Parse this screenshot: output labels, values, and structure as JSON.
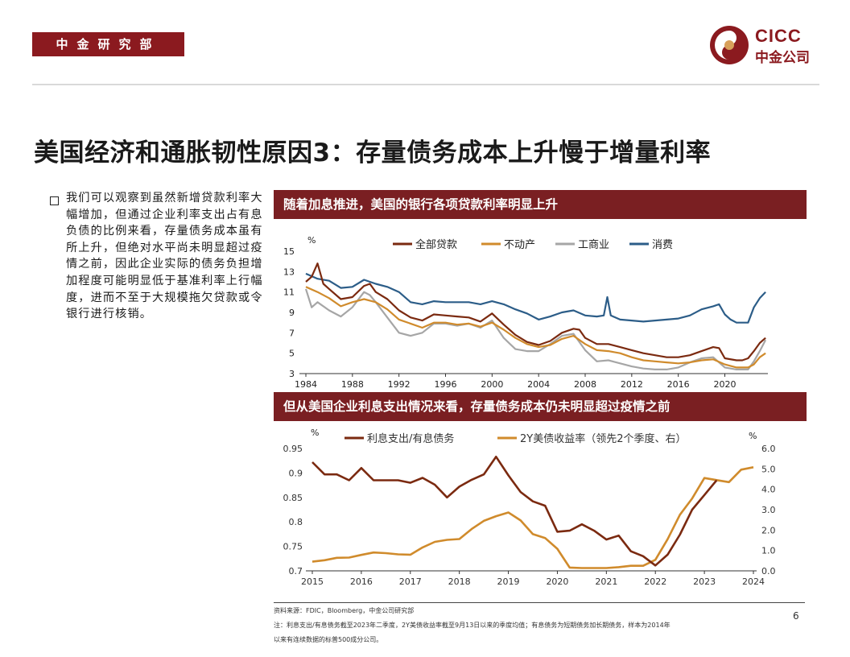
{
  "header": {
    "department": "中金研究部",
    "logo_en": "CICC",
    "logo_cn": "中金公司"
  },
  "title": "美国经济和通胀韧性原因3：存量债务成本上升慢于增量利率",
  "body_text": "我们可以观察到虽然新增贷款利率大幅增加，但通过企业利率支出占有息负债的比例来看，存量债务成本虽有所上升，但绝对水平尚未明显超过疫情之前，因此企业实际的债务负担增加程度可能明显低于基准利率上行幅度，进而不至于大规模拖欠贷款或令银行进行核销。",
  "banner1": "随着加息推进，美国的银行各项贷款利率明显上升",
  "banner2": "但从美国企业利息支出情况来看，存量债务成本仍未明显超过疫情之前",
  "footer": {
    "source": "资料来源：FDIC，Bloomberg，中金公司研究部",
    "note1": "注：利息支出/有息债务截至2023年二季度，2Y美债收益率截至9月13日以来的季度均值；有息债务为短期债务加长期债务，样本为2014年",
    "note2": "以来有连续数据的标普500成分公司。",
    "page": "6"
  },
  "colors": {
    "brand": "#8b1a1f",
    "banner": "#7a1f22",
    "series_all": "#7b2a10",
    "series_realestate": "#d08b2c",
    "series_ci": "#a6a6a6",
    "series_consumer": "#2c5d88"
  },
  "chart_data": [
    {
      "type": "line",
      "yunit": "%",
      "ylim": [
        3,
        15
      ],
      "yticks": [
        3,
        5,
        7,
        9,
        11,
        13,
        15
      ],
      "xlim": [
        1984,
        2023.7
      ],
      "xticks": [
        1984,
        1988,
        1992,
        1996,
        2000,
        2004,
        2008,
        2012,
        2016,
        2020
      ],
      "legend_position": "top",
      "series": [
        {
          "name": "全部贷款",
          "color": "#7b2a10",
          "x": [
            1984,
            1984.5,
            1985,
            1985.5,
            1986,
            1987,
            1988,
            1989,
            1989.5,
            1990,
            1991,
            1992,
            1993,
            1994,
            1995,
            1996,
            1997,
            1998,
            1999,
            2000,
            2001,
            2002,
            2003,
            2004,
            2005,
            2006,
            2007,
            2007.5,
            2008,
            2009,
            2010,
            2011,
            2012,
            2013,
            2014,
            2015,
            2016,
            2017,
            2018,
            2019,
            2019.5,
            2020,
            2021,
            2021.5,
            2022,
            2022.5,
            2023,
            2023.5
          ],
          "y": [
            12.0,
            12.5,
            13.8,
            11.8,
            11.3,
            10.3,
            10.5,
            11.6,
            11.8,
            11.0,
            10.3,
            9.2,
            8.5,
            8.2,
            8.8,
            8.7,
            8.6,
            8.5,
            8.1,
            8.9,
            7.8,
            6.8,
            6.1,
            5.8,
            6.2,
            7.0,
            7.4,
            7.3,
            6.5,
            5.9,
            5.9,
            5.6,
            5.3,
            5.0,
            4.8,
            4.6,
            4.6,
            4.8,
            5.2,
            5.6,
            5.5,
            4.5,
            4.3,
            4.3,
            4.5,
            5.2,
            6.0,
            6.5
          ]
        },
        {
          "name": "不动产",
          "color": "#d08b2c",
          "x": [
            1984,
            1985,
            1986,
            1987,
            1988,
            1989,
            1990,
            1991,
            1992,
            1993,
            1994,
            1995,
            1996,
            1997,
            1998,
            1999,
            2000,
            2001,
            2002,
            2003,
            2004,
            2005,
            2006,
            2007,
            2008,
            2009,
            2010,
            2011,
            2012,
            2013,
            2014,
            2015,
            2016,
            2017,
            2018,
            2019,
            2020,
            2021,
            2022,
            2022.5,
            2023,
            2023.5
          ],
          "y": [
            11.5,
            11.0,
            10.4,
            9.6,
            10.0,
            10.3,
            10.0,
            9.3,
            8.3,
            7.9,
            7.5,
            8.0,
            8.0,
            7.8,
            7.9,
            7.6,
            8.0,
            7.3,
            6.5,
            5.9,
            5.6,
            5.8,
            6.4,
            6.7,
            5.9,
            5.3,
            5.2,
            5.0,
            4.6,
            4.3,
            4.2,
            4.1,
            4.0,
            4.1,
            4.3,
            4.4,
            3.9,
            3.6,
            3.6,
            3.9,
            4.6,
            5.0
          ]
        },
        {
          "name": "工商业",
          "color": "#a6a6a6",
          "x": [
            1984,
            1984.5,
            1985,
            1986,
            1987,
            1988,
            1989,
            1989.5,
            1990,
            1991,
            1992,
            1993,
            1994,
            1995,
            1996,
            1997,
            1998,
            1999,
            2000,
            2001,
            2002,
            2003,
            2004,
            2005,
            2006,
            2007,
            2008,
            2009,
            2010,
            2011,
            2012,
            2013,
            2014,
            2015,
            2016,
            2017,
            2018,
            2019,
            2020,
            2021,
            2022,
            2022.5,
            2023,
            2023.5
          ],
          "y": [
            11.3,
            9.5,
            10.0,
            9.2,
            8.6,
            9.5,
            11.0,
            10.7,
            10.0,
            8.5,
            7.0,
            6.7,
            7.0,
            7.9,
            7.9,
            7.7,
            7.9,
            7.5,
            8.2,
            6.5,
            5.4,
            5.2,
            5.2,
            5.9,
            6.7,
            6.9,
            5.3,
            4.2,
            4.3,
            4.0,
            3.7,
            3.5,
            3.4,
            3.4,
            3.6,
            4.1,
            4.5,
            4.6,
            3.6,
            3.4,
            3.4,
            4.2,
            5.2,
            6.3
          ]
        },
        {
          "name": "消费",
          "color": "#2c5d88",
          "x": [
            1984,
            1985,
            1986,
            1987,
            1988,
            1989,
            1990,
            1991,
            1992,
            1993,
            1994,
            1995,
            1996,
            1997,
            1998,
            1999,
            2000,
            2001,
            2002,
            2003,
            2004,
            2005,
            2006,
            2007,
            2008,
            2009,
            2009.6,
            2009.9,
            2010.2,
            2011,
            2012,
            2013,
            2014,
            2015,
            2016,
            2017,
            2018,
            2019,
            2019.5,
            2020,
            2020.5,
            2021,
            2022,
            2022.5,
            2023,
            2023.5
          ],
          "y": [
            12.8,
            12.3,
            12.1,
            11.4,
            11.5,
            12.2,
            11.8,
            11.5,
            11.0,
            10.0,
            9.8,
            10.1,
            10.0,
            10.0,
            10.0,
            9.8,
            10.1,
            9.8,
            9.3,
            8.9,
            8.3,
            8.6,
            9.0,
            9.2,
            8.7,
            8.6,
            8.7,
            10.5,
            8.7,
            8.3,
            8.2,
            8.1,
            8.2,
            8.3,
            8.4,
            8.7,
            9.3,
            9.6,
            9.8,
            8.8,
            8.3,
            8.0,
            8.0,
            9.5,
            10.4,
            11.0
          ]
        }
      ]
    },
    {
      "type": "line",
      "ylabel_left": "%",
      "ylabel_right": "%",
      "ylim_left": [
        0.7,
        0.95
      ],
      "ylim_right": [
        0.0,
        6.0
      ],
      "yticks_left": [
        0.7,
        0.75,
        0.8,
        0.85,
        0.9,
        0.95
      ],
      "yticks_right": [
        0.0,
        1.0,
        2.0,
        3.0,
        4.0,
        5.0,
        6.0
      ],
      "xlim": [
        2015,
        2024
      ],
      "xticks": [
        2015,
        2016,
        2017,
        2018,
        2019,
        2020,
        2021,
        2022,
        2023,
        2024
      ],
      "legend_position": "top",
      "series": [
        {
          "name": "利息支出/有息债务",
          "axis": "left",
          "color": "#7b2a10",
          "x": [
            2015,
            2015.25,
            2015.5,
            2015.75,
            2016,
            2016.25,
            2016.5,
            2016.75,
            2017,
            2017.25,
            2017.5,
            2017.75,
            2018,
            2018.25,
            2018.5,
            2018.75,
            2019,
            2019.25,
            2019.5,
            2019.75,
            2020,
            2020.25,
            2020.5,
            2020.75,
            2021,
            2021.25,
            2021.5,
            2021.75,
            2022,
            2022.25,
            2022.5,
            2022.75,
            2023,
            2023.25
          ],
          "y": [
            0.922,
            0.897,
            0.897,
            0.885,
            0.91,
            0.885,
            0.885,
            0.885,
            0.88,
            0.89,
            0.876,
            0.85,
            0.872,
            0.886,
            0.897,
            0.933,
            0.895,
            0.861,
            0.842,
            0.833,
            0.78,
            0.782,
            0.795,
            0.782,
            0.764,
            0.772,
            0.74,
            0.73,
            0.711,
            0.733,
            0.774,
            0.825,
            0.855,
            0.885
          ]
        },
        {
          "name": "2Y美债收益率（领先2个季度、右）",
          "axis": "right",
          "color": "#d08b2c",
          "x": [
            2015,
            2015.25,
            2015.5,
            2015.75,
            2016,
            2016.25,
            2016.5,
            2016.75,
            2017,
            2017.25,
            2017.5,
            2017.75,
            2018,
            2018.25,
            2018.5,
            2018.75,
            2019,
            2019.25,
            2019.5,
            2019.75,
            2020,
            2020.25,
            2020.5,
            2020.75,
            2021,
            2021.25,
            2021.5,
            2021.75,
            2022,
            2022.25,
            2022.5,
            2022.75,
            2023,
            2023.25,
            2023.5,
            2023.75,
            2024
          ],
          "y": [
            0.45,
            0.52,
            0.64,
            0.65,
            0.78,
            0.9,
            0.87,
            0.81,
            0.79,
            1.15,
            1.42,
            1.52,
            1.56,
            2.05,
            2.45,
            2.68,
            2.86,
            2.47,
            1.8,
            1.61,
            1.08,
            0.16,
            0.14,
            0.14,
            0.14,
            0.18,
            0.25,
            0.25,
            0.54,
            1.55,
            2.75,
            3.55,
            4.55,
            4.45,
            4.35,
            4.96,
            5.08
          ]
        }
      ]
    }
  ]
}
